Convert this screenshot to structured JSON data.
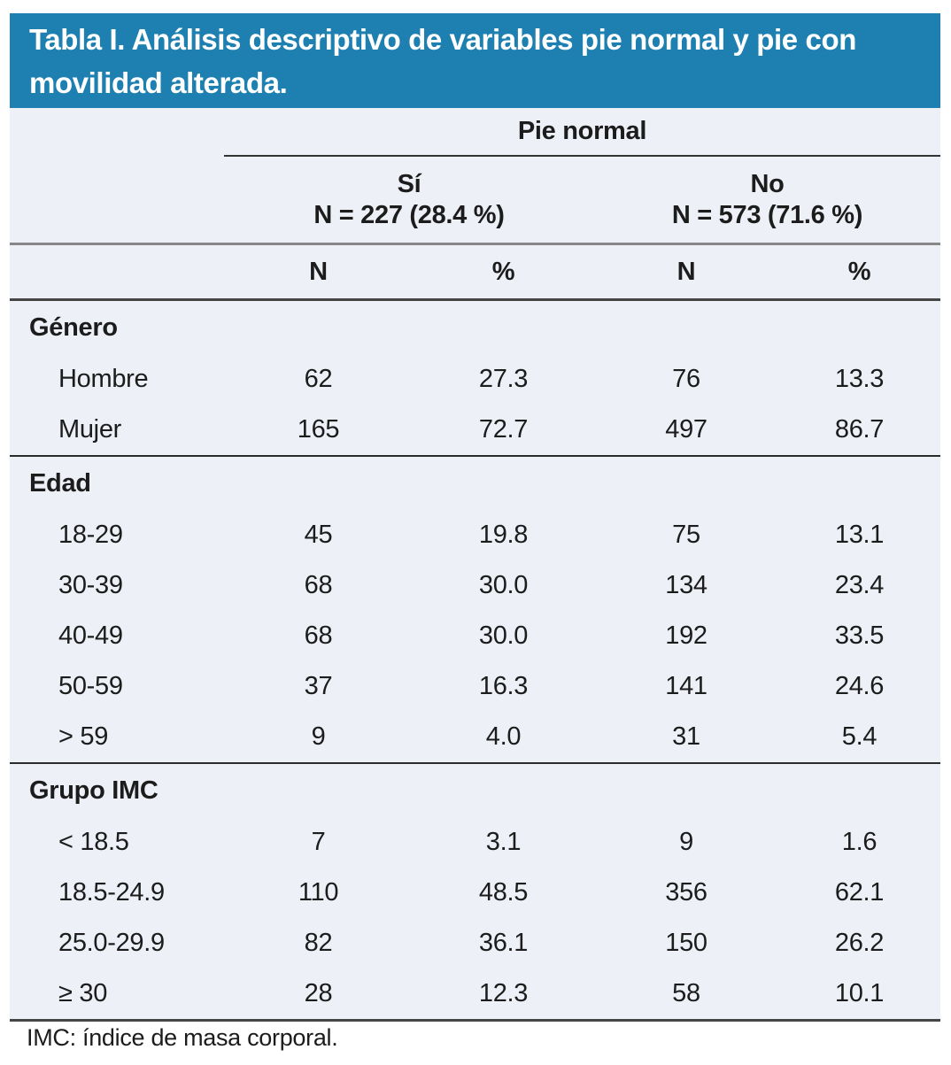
{
  "title": "Tabla I. Análisis descriptivo de variables pie normal y pie con movilidad alterada.",
  "colors": {
    "title_bar_bg": "#1d80b0",
    "title_text": "#ffffff",
    "table_bg": "#edf0f7",
    "rule_dark": "#454545",
    "rule_gray": "#878787",
    "text": "#1c1c1c"
  },
  "table": {
    "group_header": "Pie normal",
    "subgroups": [
      {
        "label": "Sí",
        "n_label": "N = 227 (28.4 %)"
      },
      {
        "label": "No",
        "n_label": "N = 573 (71.6 %)"
      }
    ],
    "col_headers": [
      "N",
      "%",
      "N",
      "%"
    ],
    "sections": [
      {
        "header": "Género",
        "rows": [
          {
            "label": "Hombre",
            "values": [
              "62",
              "27.3",
              "76",
              "13.3"
            ]
          },
          {
            "label": "Mujer",
            "values": [
              "165",
              "72.7",
              "497",
              "86.7"
            ]
          }
        ]
      },
      {
        "header": "Edad",
        "rows": [
          {
            "label": "18-29",
            "values": [
              "45",
              "19.8",
              "75",
              "13.1"
            ]
          },
          {
            "label": "30-39",
            "values": [
              "68",
              "30.0",
              "134",
              "23.4"
            ]
          },
          {
            "label": "40-49",
            "values": [
              "68",
              "30.0",
              "192",
              "33.5"
            ]
          },
          {
            "label": "50-59",
            "values": [
              "37",
              "16.3",
              "141",
              "24.6"
            ]
          },
          {
            "label": "> 59",
            "values": [
              "9",
              "4.0",
              "31",
              "5.4"
            ]
          }
        ]
      },
      {
        "header": "Grupo IMC",
        "rows": [
          {
            "label": "< 18.5",
            "values": [
              "7",
              "3.1",
              "9",
              "1.6"
            ]
          },
          {
            "label": "18.5-24.9",
            "values": [
              "110",
              "48.5",
              "356",
              "62.1"
            ]
          },
          {
            "label": "25.0-29.9",
            "values": [
              "82",
              "36.1",
              "150",
              "26.2"
            ]
          },
          {
            "label": "≥ 30",
            "values": [
              "28",
              "12.3",
              "58",
              "10.1"
            ]
          }
        ]
      }
    ]
  },
  "footnote": "IMC: índice de masa corporal."
}
